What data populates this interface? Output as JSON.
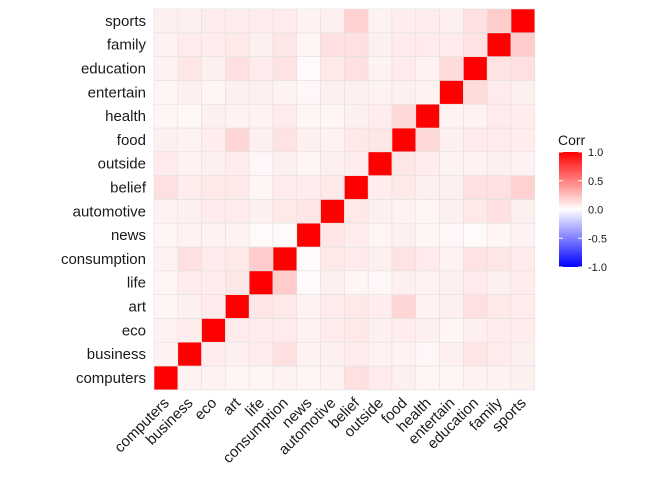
{
  "chart_data": {
    "type": "heatmap",
    "variables": [
      "computers",
      "business",
      "eco",
      "art",
      "life",
      "consumption",
      "news",
      "automotive",
      "belief",
      "outside",
      "food",
      "health",
      "entertain",
      "education",
      "family",
      "sports"
    ],
    "matrix": [
      [
        1.0,
        0.05,
        0.05,
        0.04,
        0.04,
        0.05,
        0.04,
        0.05,
        0.12,
        0.08,
        0.06,
        0.04,
        0.04,
        0.05,
        0.05,
        0.06
      ],
      [
        0.05,
        1.0,
        0.07,
        0.06,
        0.07,
        0.12,
        0.05,
        0.06,
        0.07,
        0.05,
        0.05,
        0.03,
        0.06,
        0.1,
        0.08,
        0.06
      ],
      [
        0.05,
        0.07,
        1.0,
        0.08,
        0.07,
        0.08,
        0.05,
        0.08,
        0.09,
        0.06,
        0.07,
        0.06,
        0.04,
        0.06,
        0.07,
        0.07
      ],
      [
        0.04,
        0.06,
        0.08,
        1.0,
        0.1,
        0.09,
        0.05,
        0.08,
        0.09,
        0.07,
        0.16,
        0.05,
        0.06,
        0.12,
        0.09,
        0.07
      ],
      [
        0.04,
        0.07,
        0.07,
        0.1,
        1.0,
        0.2,
        0.02,
        0.06,
        0.04,
        0.03,
        0.06,
        0.05,
        0.06,
        0.08,
        0.06,
        0.07
      ],
      [
        0.05,
        0.12,
        0.08,
        0.09,
        0.2,
        1.0,
        0.02,
        0.09,
        0.08,
        0.06,
        0.11,
        0.08,
        0.05,
        0.11,
        0.1,
        0.08
      ],
      [
        0.04,
        0.05,
        0.05,
        0.05,
        0.02,
        0.02,
        1.0,
        0.1,
        0.07,
        0.04,
        0.06,
        0.04,
        0.03,
        0.02,
        0.04,
        0.05
      ],
      [
        0.05,
        0.06,
        0.08,
        0.08,
        0.06,
        0.09,
        0.1,
        1.0,
        0.09,
        0.06,
        0.05,
        0.04,
        0.06,
        0.09,
        0.12,
        0.06
      ],
      [
        0.12,
        0.07,
        0.09,
        0.09,
        0.04,
        0.08,
        0.07,
        0.09,
        1.0,
        0.07,
        0.09,
        0.06,
        0.06,
        0.12,
        0.12,
        0.18
      ],
      [
        0.08,
        0.05,
        0.06,
        0.07,
        0.03,
        0.06,
        0.04,
        0.06,
        0.07,
        1.0,
        0.1,
        0.07,
        0.05,
        0.05,
        0.06,
        0.05
      ],
      [
        0.06,
        0.05,
        0.07,
        0.16,
        0.06,
        0.11,
        0.06,
        0.05,
        0.09,
        0.1,
        1.0,
        0.15,
        0.06,
        0.08,
        0.08,
        0.07
      ],
      [
        0.04,
        0.03,
        0.06,
        0.05,
        0.05,
        0.08,
        0.04,
        0.04,
        0.06,
        0.07,
        0.15,
        1.0,
        0.05,
        0.05,
        0.08,
        0.07
      ],
      [
        0.04,
        0.06,
        0.04,
        0.06,
        0.06,
        0.05,
        0.03,
        0.06,
        0.06,
        0.05,
        0.06,
        0.05,
        1.0,
        0.14,
        0.08,
        0.06
      ],
      [
        0.05,
        0.1,
        0.06,
        0.12,
        0.08,
        0.11,
        0.02,
        0.09,
        0.12,
        0.05,
        0.08,
        0.05,
        0.14,
        1.0,
        0.11,
        0.12
      ],
      [
        0.05,
        0.08,
        0.07,
        0.09,
        0.06,
        0.1,
        0.04,
        0.12,
        0.12,
        0.06,
        0.08,
        0.08,
        0.08,
        0.11,
        1.0,
        0.2
      ],
      [
        0.06,
        0.06,
        0.07,
        0.07,
        0.07,
        0.08,
        0.05,
        0.06,
        0.18,
        0.05,
        0.07,
        0.07,
        0.06,
        0.12,
        0.2,
        1.0
      ]
    ],
    "legend": {
      "title": "Corr",
      "ticks": [
        "1.0",
        "0.5",
        "0.0",
        "-0.5",
        "-1.0"
      ],
      "range": [
        -1,
        1
      ]
    },
    "colors": {
      "low": "#0000ff",
      "mid": "#ffffff",
      "high": "#ff0000"
    }
  }
}
